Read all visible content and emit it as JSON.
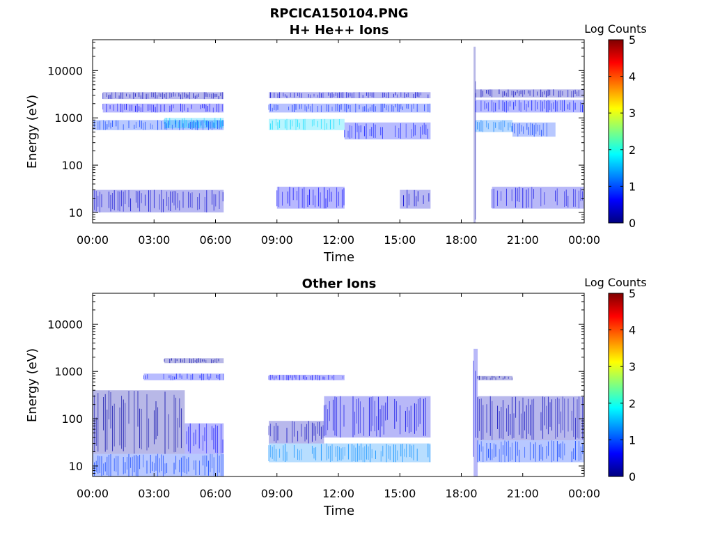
{
  "figure": {
    "title_line1": "RPCICA150104.PNG",
    "background": "#ffffff"
  },
  "colorscale": {
    "label": "Log Counts",
    "range": [
      0,
      5
    ],
    "ticks": [
      0,
      1,
      2,
      3,
      4,
      5
    ],
    "stops": [
      "#00007f",
      "#0000ff",
      "#0080ff",
      "#00ffff",
      "#80ff80",
      "#ffff00",
      "#ff8000",
      "#ff0000",
      "#7f0000"
    ]
  },
  "chart_data": [
    {
      "type": "heatmap",
      "title": "H+ He++ Ions",
      "xlabel": "Time",
      "ylabel": "Energy (eV)",
      "x_ticks": [
        "00:00",
        "03:00",
        "06:00",
        "09:00",
        "12:00",
        "15:00",
        "18:00",
        "21:00",
        "00:00"
      ],
      "xlim_hours": [
        0,
        24
      ],
      "yscale": "log",
      "ylim": [
        6,
        45000
      ],
      "y_ticks": [
        10,
        100,
        1000,
        10000
      ],
      "y_tick_labels": [
        "10",
        "100",
        "1000",
        "10000"
      ],
      "data_gaps_hours": [
        [
          6.4,
          8.6
        ],
        [
          16.5,
          18.6
        ]
      ],
      "bands": [
        {
          "t_start": 0.0,
          "t_end": 6.4,
          "e_low": 550,
          "e_high": 900,
          "log_counts": 0.9
        },
        {
          "t_start": 3.5,
          "t_end": 6.4,
          "e_low": 600,
          "e_high": 1000,
          "log_counts": 1.6
        },
        {
          "t_start": 0.5,
          "t_end": 6.4,
          "e_low": 1300,
          "e_high": 2000,
          "log_counts": 0.6
        },
        {
          "t_start": 0.5,
          "t_end": 6.4,
          "e_low": 2500,
          "e_high": 3500,
          "log_counts": 0.3
        },
        {
          "t_start": 0.0,
          "t_end": 6.4,
          "e_low": 10,
          "e_high": 30,
          "log_counts": 0.4
        },
        {
          "t_start": 8.6,
          "t_end": 12.3,
          "e_low": 550,
          "e_high": 950,
          "log_counts": 1.7
        },
        {
          "t_start": 8.6,
          "t_end": 16.5,
          "e_low": 1300,
          "e_high": 2000,
          "log_counts": 0.8
        },
        {
          "t_start": 8.6,
          "t_end": 16.5,
          "e_low": 2600,
          "e_high": 3500,
          "log_counts": 0.4
        },
        {
          "t_start": 12.3,
          "t_end": 16.5,
          "e_low": 350,
          "e_high": 800,
          "log_counts": 0.7
        },
        {
          "t_start": 9.0,
          "t_end": 12.3,
          "e_low": 12,
          "e_high": 35,
          "log_counts": 0.6
        },
        {
          "t_start": 15.0,
          "t_end": 16.5,
          "e_low": 12,
          "e_high": 30,
          "log_counts": 0.4
        },
        {
          "t_start": 18.6,
          "t_end": 18.7,
          "e_low": 6,
          "e_high": 32000,
          "log_counts": 0.2
        },
        {
          "t_start": 18.7,
          "t_end": 20.5,
          "e_low": 500,
          "e_high": 900,
          "log_counts": 1.2
        },
        {
          "t_start": 20.5,
          "t_end": 22.6,
          "e_low": 400,
          "e_high": 800,
          "log_counts": 0.9
        },
        {
          "t_start": 18.7,
          "t_end": 24.0,
          "e_low": 1300,
          "e_high": 2400,
          "log_counts": 0.7
        },
        {
          "t_start": 18.7,
          "t_end": 24.0,
          "e_low": 2700,
          "e_high": 4000,
          "log_counts": 0.3
        },
        {
          "t_start": 19.5,
          "t_end": 24.0,
          "e_low": 12,
          "e_high": 35,
          "log_counts": 0.5
        }
      ]
    },
    {
      "type": "heatmap",
      "title": "Other Ions",
      "xlabel": "Time",
      "ylabel": "Energy (eV)",
      "x_ticks": [
        "00:00",
        "03:00",
        "06:00",
        "09:00",
        "12:00",
        "15:00",
        "18:00",
        "21:00",
        "00:00"
      ],
      "xlim_hours": [
        0,
        24
      ],
      "yscale": "log",
      "ylim": [
        6,
        45000
      ],
      "y_ticks": [
        10,
        100,
        1000,
        10000
      ],
      "y_tick_labels": [
        "10",
        "100",
        "1000",
        "10000"
      ],
      "data_gaps_hours": [
        [
          6.4,
          8.6
        ],
        [
          16.5,
          18.6
        ]
      ],
      "bands": [
        {
          "t_start": 0.0,
          "t_end": 6.4,
          "e_low": 6,
          "e_high": 18,
          "log_counts": 0.9
        },
        {
          "t_start": 0.0,
          "t_end": 4.5,
          "e_low": 18,
          "e_high": 400,
          "log_counts": 0.2
        },
        {
          "t_start": 4.5,
          "t_end": 6.4,
          "e_low": 18,
          "e_high": 80,
          "log_counts": 0.6
        },
        {
          "t_start": 2.5,
          "t_end": 6.4,
          "e_low": 650,
          "e_high": 900,
          "log_counts": 0.7
        },
        {
          "t_start": 3.5,
          "t_end": 6.4,
          "e_low": 1500,
          "e_high": 1900,
          "log_counts": 0.2
        },
        {
          "t_start": 8.6,
          "t_end": 16.5,
          "e_low": 12,
          "e_high": 30,
          "log_counts": 1.3
        },
        {
          "t_start": 8.6,
          "t_end": 11.3,
          "e_low": 30,
          "e_high": 90,
          "log_counts": 0.3
        },
        {
          "t_start": 11.3,
          "t_end": 16.5,
          "e_low": 40,
          "e_high": 300,
          "log_counts": 0.5
        },
        {
          "t_start": 8.6,
          "t_end": 12.3,
          "e_low": 650,
          "e_high": 850,
          "log_counts": 0.6
        },
        {
          "t_start": 18.6,
          "t_end": 18.8,
          "e_low": 6,
          "e_high": 3000,
          "log_counts": 0.5
        },
        {
          "t_start": 18.8,
          "t_end": 24.0,
          "e_low": 12,
          "e_high": 35,
          "log_counts": 0.9
        },
        {
          "t_start": 18.8,
          "t_end": 24.0,
          "e_low": 35,
          "e_high": 300,
          "log_counts": 0.3
        },
        {
          "t_start": 18.8,
          "t_end": 20.5,
          "e_low": 650,
          "e_high": 800,
          "log_counts": 0.2
        }
      ]
    }
  ]
}
